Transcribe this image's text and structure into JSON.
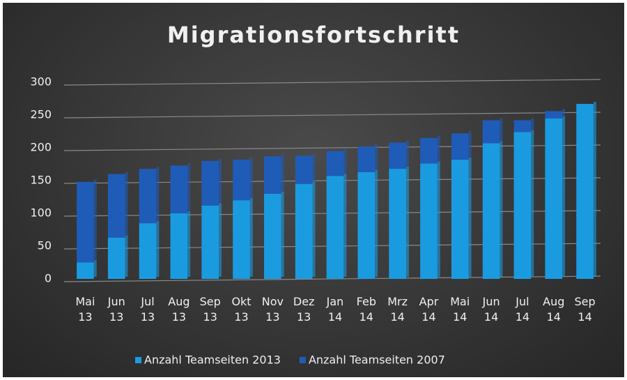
{
  "chart_data": {
    "type": "bar",
    "stacked": true,
    "title": "Migrationsfortschritt",
    "categories": [
      "Mai 13",
      "Jun 13",
      "Jul 13",
      "Aug 13",
      "Sep 13",
      "Okt 13",
      "Nov 13",
      "Dez 13",
      "Jan 14",
      "Feb 14",
      "Mrz 14",
      "Apr 14",
      "Mai 14",
      "Jun 14",
      "Jul 14",
      "Aug 14",
      "Sep 14"
    ],
    "series": [
      {
        "name": "Anzahl Teamseiten 2013",
        "color": "#1a9be0",
        "values": [
          25,
          63,
          85,
          100,
          112,
          120,
          130,
          145,
          157,
          163,
          168,
          176,
          182,
          207,
          224,
          245,
          267
        ]
      },
      {
        "name": "Anzahl Teamseiten 2007",
        "color": "#1f5cb8",
        "values": [
          123,
          97,
          83,
          73,
          68,
          62,
          57,
          43,
          38,
          39,
          40,
          39,
          40,
          35,
          18,
          11,
          0
        ]
      }
    ],
    "ylim": [
      0,
      300
    ],
    "yticks": [
      0,
      50,
      100,
      150,
      200,
      250,
      300
    ],
    "grid": true,
    "legend": "bottom"
  }
}
